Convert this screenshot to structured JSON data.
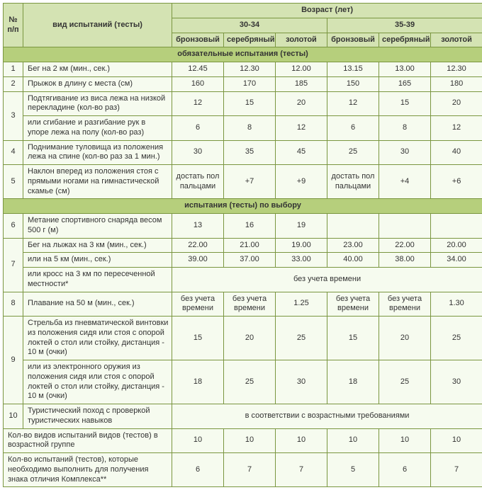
{
  "header": {
    "num": "№ п/п",
    "testType": "вид испытаний (тесты)",
    "age": "Возраст (лет)",
    "age1": "30-34",
    "age2": "35-39",
    "bronze": "бронзовый",
    "silver": "серебряный",
    "gold": "золотой"
  },
  "sections": {
    "mandatory": "обязательные испытания (тесты)",
    "optional": "испытания (тесты) по выбору"
  },
  "r1": {
    "n": "1",
    "name": "Бег на 2 км (мин., сек.)",
    "a": "12.45",
    "b": "12.30",
    "c": "12.00",
    "d": "13.15",
    "e": "13.00",
    "f": "12.30"
  },
  "r2": {
    "n": "2",
    "name": "Прыжок в длину с места (см)",
    "a": "160",
    "b": "170",
    "c": "185",
    "d": "150",
    "e": "165",
    "f": "180"
  },
  "r3a": {
    "n": "3",
    "name": "Подтягивание из виса лежа на низкой перекладине (кол-во раз)",
    "a": "12",
    "b": "15",
    "c": "20",
    "d": "12",
    "e": "15",
    "f": "20"
  },
  "r3b": {
    "name": "или сгибание и разгибание рук в упоре лежа на полу (кол-во раз)",
    "a": "6",
    "b": "8",
    "c": "12",
    "d": "6",
    "e": "8",
    "f": "12"
  },
  "r4": {
    "n": "4",
    "name": "Поднимание туловища из положения лежа на спине (кол-во раз за 1 мин.)",
    "a": "30",
    "b": "35",
    "c": "45",
    "d": "25",
    "e": "30",
    "f": "40"
  },
  "r5": {
    "n": "5",
    "name": "Наклон вперед из положения стоя с прямыми ногами на гимнастической скамье (см)",
    "a": "достать пол пальцами",
    "b": "+7",
    "c": "+9",
    "d": "достать пол пальцами",
    "e": "+4",
    "f": "+6"
  },
  "r6": {
    "n": "6",
    "name": "Метание спортивного снаряда весом 500 г (м)",
    "a": "13",
    "b": "16",
    "c": "19",
    "d": "",
    "e": "",
    "f": ""
  },
  "r7a": {
    "n": "7",
    "name": "Бег на лыжах на 3 км (мин., сек.)",
    "a": "22.00",
    "b": "21.00",
    "c": "19.00",
    "d": "23.00",
    "e": "22.00",
    "f": "20.00"
  },
  "r7b": {
    "name": "или на 5 км (мин., сек.)",
    "a": "39.00",
    "b": "37.00",
    "c": "33.00",
    "d": "40.00",
    "e": "38.00",
    "f": "34.00"
  },
  "r7c": {
    "name": "или кросс на 3 км по пересеченной местности*",
    "merged": "без учета времени"
  },
  "r8": {
    "n": "8",
    "name": "Плавание на 50 м (мин., сек.)",
    "a": "без учета времени",
    "b": "без учета времени",
    "c": "1.25",
    "d": "без учета времени",
    "e": "без учета времени",
    "f": "1.30"
  },
  "r9a": {
    "n": "9",
    "name": "Стрельба из пневматической винтовки из положения сидя или стоя с опорой локтей о стол или стойку, дистанция - 10 м (очки)",
    "a": "15",
    "b": "20",
    "c": "25",
    "d": "15",
    "e": "20",
    "f": "25"
  },
  "r9b": {
    "name": "или из электронного оружия из положения сидя или стоя с опорой локтей о стол или стойку, дистанция - 10 м (очки)",
    "a": "18",
    "b": "25",
    "c": "30",
    "d": "18",
    "e": "25",
    "f": "30"
  },
  "r10": {
    "n": "10",
    "name": "Туристический поход с проверкой туристических навыков",
    "merged": "в соответствии с возрастными требованиями"
  },
  "sum1": {
    "name": "Кол-во видов испытаний видов (тестов) в возрастной группе",
    "a": "10",
    "b": "10",
    "c": "10",
    "d": "10",
    "e": "10",
    "f": "10"
  },
  "sum2": {
    "name": "Кол-во испытаний (тестов), которые необходимо выполнить для получения знака отличия Комплекса**",
    "a": "6",
    "b": "7",
    "c": "7",
    "d": "5",
    "e": "6",
    "f": "7"
  }
}
